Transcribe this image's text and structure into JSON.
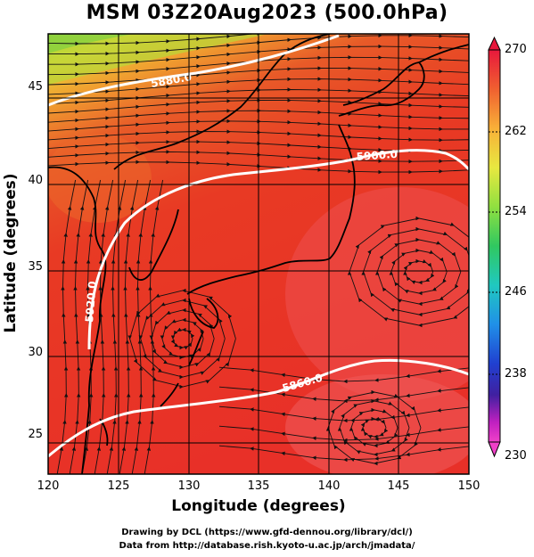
{
  "figure": {
    "title": "MSM 03Z20Aug2023 (500.0hPa)",
    "xlabel": "Longitude (degrees)",
    "ylabel": "Latitude  (degrees)",
    "x_ticks": [
      "120",
      "125",
      "130",
      "135",
      "140",
      "145",
      "150"
    ],
    "y_ticks": [
      "45",
      "40",
      "35",
      "30",
      "25"
    ],
    "contour_labels": [
      "5880.0",
      "5900.0",
      "5920.0",
      "5860.0"
    ],
    "credits": [
      "Drawing by DCL (https://www.gfd-dennou.org/library/dcl/)",
      "Data from http://database.rish.kyoto-u.ac.jp/arch/jmadata/"
    ]
  },
  "colorbar": {
    "ticks": [
      "270",
      "262",
      "254",
      "246",
      "238",
      "230"
    ],
    "colors": [
      "#e8183c",
      "#f06030",
      "#f8b038",
      "#e8e840",
      "#90e040",
      "#30c860",
      "#20c8c0",
      "#2090e8",
      "#2040d0",
      "#4020a0",
      "#c020c0",
      "#f040c8"
    ]
  },
  "chart_data": {
    "type": "heatmap",
    "title": "MSM 03Z20Aug2023 (500.0hPa)",
    "xlabel": "Longitude (degrees)",
    "ylabel": "Latitude  (degrees)",
    "xlim": [
      120,
      150
    ],
    "ylim": [
      22.5,
      47.5
    ],
    "color_range": [
      230,
      270
    ],
    "contours": [
      {
        "label": "5880.0",
        "lon": 130.5,
        "lat": 45.3
      },
      {
        "label": "5900.0",
        "lon": 143.2,
        "lat": 41.6
      },
      {
        "label": "5920.0",
        "lon": 123.2,
        "lat": 32.5
      },
      {
        "label": "5860.0",
        "lon": 137.2,
        "lat": 27.6
      }
    ]
  }
}
